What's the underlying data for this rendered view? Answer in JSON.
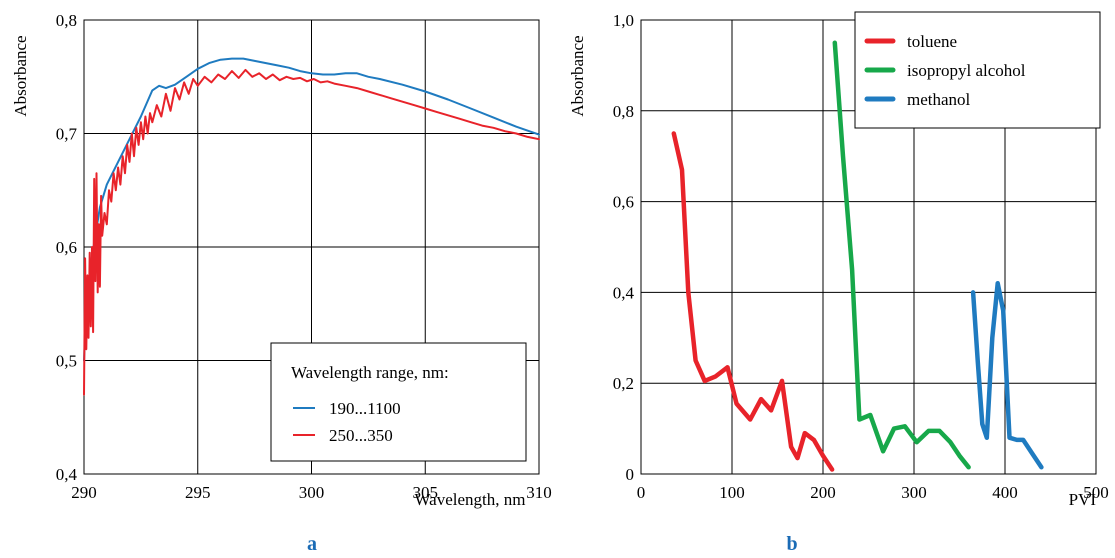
{
  "chart_data": [
    {
      "type": "line",
      "panel_label": "a",
      "xlabel": "Wavelength, nm",
      "ylabel": "Absorbance",
      "xlim": [
        290,
        310
      ],
      "ylim": [
        0.4,
        0.8
      ],
      "xticks": [
        290,
        295,
        300,
        305,
        310
      ],
      "xtick_labels": [
        "290",
        "295",
        "300",
        "305",
        "310"
      ],
      "yticks": [
        0.4,
        0.5,
        0.6,
        0.7,
        0.8
      ],
      "ytick_labels": [
        "0,4",
        "0,5",
        "0,6",
        "0,7",
        "0,8"
      ],
      "grid": true,
      "legend_title": "Wavelength range, nm:",
      "legend_position": "bottom-right",
      "series": [
        {
          "name": "190...1100",
          "color": "#1f7bc0",
          "x": [
            290.0,
            290.1,
            290.3,
            290.5,
            290.7,
            291.0,
            291.5,
            292.0,
            292.5,
            293.0,
            293.3,
            293.6,
            294.0,
            294.5,
            295.0,
            295.5,
            296.0,
            296.5,
            297.0,
            297.5,
            298.0,
            298.5,
            299.0,
            299.5,
            300.0,
            300.5,
            301.0,
            301.5,
            302.0,
            302.5,
            303.0,
            304.0,
            305.0,
            306.0,
            307.0,
            308.0,
            309.0,
            310.0
          ],
          "y": [
            0.5,
            0.55,
            0.585,
            0.61,
            0.635,
            0.655,
            0.675,
            0.695,
            0.715,
            0.738,
            0.742,
            0.74,
            0.743,
            0.75,
            0.757,
            0.762,
            0.765,
            0.766,
            0.766,
            0.764,
            0.762,
            0.76,
            0.758,
            0.755,
            0.753,
            0.752,
            0.752,
            0.753,
            0.753,
            0.75,
            0.748,
            0.743,
            0.737,
            0.73,
            0.722,
            0.714,
            0.706,
            0.699
          ]
        },
        {
          "name": "250...350",
          "color": "#e8232a",
          "x": [
            290.0,
            290.05,
            290.1,
            290.15,
            290.2,
            290.25,
            290.3,
            290.35,
            290.4,
            290.45,
            290.5,
            290.55,
            290.6,
            290.65,
            290.7,
            290.75,
            290.8,
            290.9,
            291.0,
            291.1,
            291.2,
            291.3,
            291.4,
            291.5,
            291.6,
            291.7,
            291.8,
            291.9,
            292.0,
            292.1,
            292.2,
            292.3,
            292.4,
            292.5,
            292.6,
            292.7,
            292.8,
            292.9,
            293.0,
            293.2,
            293.4,
            293.6,
            293.8,
            294.0,
            294.2,
            294.4,
            294.6,
            294.8,
            295.0,
            295.3,
            295.6,
            295.9,
            296.2,
            296.5,
            296.8,
            297.1,
            297.4,
            297.7,
            298.0,
            298.3,
            298.6,
            298.9,
            299.2,
            299.5,
            299.8,
            300.1,
            300.4,
            300.7,
            301.0,
            301.5,
            302.0,
            302.5,
            303.0,
            303.5,
            304.0,
            304.5,
            305.0,
            305.5,
            306.0,
            306.5,
            307.0,
            307.5,
            308.0,
            308.5,
            309.0,
            309.5,
            310.0
          ],
          "y": [
            0.47,
            0.59,
            0.51,
            0.575,
            0.52,
            0.595,
            0.53,
            0.6,
            0.525,
            0.66,
            0.57,
            0.665,
            0.56,
            0.62,
            0.565,
            0.645,
            0.61,
            0.63,
            0.62,
            0.65,
            0.64,
            0.665,
            0.65,
            0.67,
            0.655,
            0.68,
            0.665,
            0.69,
            0.675,
            0.7,
            0.68,
            0.705,
            0.69,
            0.71,
            0.695,
            0.715,
            0.7,
            0.718,
            0.71,
            0.725,
            0.715,
            0.735,
            0.72,
            0.74,
            0.73,
            0.745,
            0.735,
            0.748,
            0.742,
            0.75,
            0.745,
            0.752,
            0.748,
            0.755,
            0.749,
            0.756,
            0.75,
            0.753,
            0.748,
            0.752,
            0.747,
            0.75,
            0.748,
            0.749,
            0.746,
            0.748,
            0.745,
            0.746,
            0.744,
            0.742,
            0.74,
            0.737,
            0.734,
            0.731,
            0.728,
            0.725,
            0.722,
            0.719,
            0.716,
            0.713,
            0.71,
            0.707,
            0.705,
            0.702,
            0.7,
            0.697,
            0.695
          ]
        }
      ]
    },
    {
      "type": "line",
      "panel_label": "b",
      "xlabel": "PVI",
      "ylabel": "Absorbance",
      "xlim": [
        0,
        500
      ],
      "ylim": [
        0,
        1.0
      ],
      "xticks": [
        0,
        100,
        200,
        300,
        400,
        500
      ],
      "xtick_labels": [
        "0",
        "100",
        "200",
        "300",
        "400",
        "500"
      ],
      "yticks": [
        0,
        0.2,
        0.4,
        0.6,
        0.8,
        1.0
      ],
      "ytick_labels": [
        "0",
        "0,2",
        "0,4",
        "0,6",
        "0,8",
        "1,0"
      ],
      "grid": true,
      "legend_position": "top-right",
      "series": [
        {
          "name": "toluene",
          "color": "#e8232a",
          "x": [
            36,
            45,
            52,
            60,
            70,
            82,
            95,
            105,
            120,
            132,
            143,
            155,
            165,
            172,
            180,
            190,
            200,
            210
          ],
          "y": [
            0.75,
            0.67,
            0.4,
            0.25,
            0.205,
            0.215,
            0.235,
            0.155,
            0.12,
            0.165,
            0.14,
            0.205,
            0.06,
            0.035,
            0.09,
            0.075,
            0.04,
            0.01
          ]
        },
        {
          "name": "isopropyl alcohol",
          "color": "#17a84a",
          "x": [
            213,
            222,
            232,
            240,
            252,
            266,
            278,
            290,
            303,
            316,
            328,
            340,
            350,
            360
          ],
          "y": [
            0.95,
            0.7,
            0.45,
            0.12,
            0.13,
            0.05,
            0.1,
            0.105,
            0.07,
            0.095,
            0.095,
            0.07,
            0.04,
            0.015
          ]
        },
        {
          "name": "methanol",
          "color": "#1f7bc0",
          "x": [
            365,
            370,
            375,
            380,
            386,
            392,
            398,
            405,
            413,
            420,
            430,
            440
          ],
          "y": [
            0.4,
            0.25,
            0.11,
            0.08,
            0.3,
            0.42,
            0.36,
            0.08,
            0.075,
            0.075,
            0.045,
            0.015
          ]
        }
      ]
    }
  ]
}
